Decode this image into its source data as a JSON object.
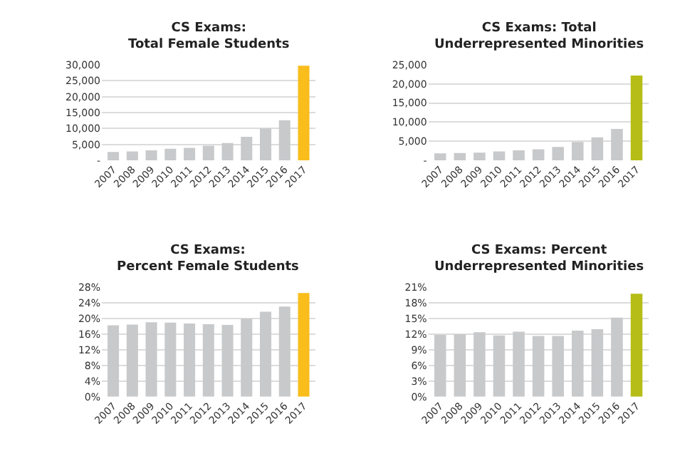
{
  "chart_data": [
    {
      "type": "bar",
      "title": "CS Exams:\nTotal Female Students",
      "categories": [
        "2007",
        "2008",
        "2009",
        "2010",
        "2011",
        "2012",
        "2013",
        "2014",
        "2015",
        "2016",
        "2017"
      ],
      "values": [
        2600,
        2800,
        3100,
        3600,
        3900,
        4600,
        5400,
        7400,
        10000,
        12600,
        29700
      ],
      "colors": [
        "#c8c9cb",
        "#c8c9cb",
        "#c8c9cb",
        "#c8c9cb",
        "#c8c9cb",
        "#c8c9cb",
        "#c8c9cb",
        "#c8c9cb",
        "#c8c9cb",
        "#c8c9cb",
        "#f9bd1c"
      ],
      "ylim": [
        0,
        30000
      ],
      "yticks": [
        {
          "value": 0,
          "label": "-"
        },
        {
          "value": 5000,
          "label": "5,000"
        },
        {
          "value": 10000,
          "label": "10,000"
        },
        {
          "value": 15000,
          "label": "15,000"
        },
        {
          "value": 20000,
          "label": "20,000"
        },
        {
          "value": 25000,
          "label": "25,000"
        },
        {
          "value": 30000,
          "label": "30,000"
        }
      ],
      "grid": "y"
    },
    {
      "type": "bar",
      "title": "CS Exams: Total\nUnderrepresented Minorities",
      "categories": [
        "2007",
        "2008",
        "2009",
        "2010",
        "2011",
        "2012",
        "2013",
        "2014",
        "2015",
        "2016",
        "2017"
      ],
      "values": [
        1800,
        1900,
        2000,
        2300,
        2600,
        2900,
        3500,
        4800,
        6000,
        8200,
        22200
      ],
      "colors": [
        "#c8c9cb",
        "#c8c9cb",
        "#c8c9cb",
        "#c8c9cb",
        "#c8c9cb",
        "#c8c9cb",
        "#c8c9cb",
        "#c8c9cb",
        "#c8c9cb",
        "#c8c9cb",
        "#b5bd16"
      ],
      "ylim": [
        0,
        25000
      ],
      "yticks": [
        {
          "value": 0,
          "label": "-"
        },
        {
          "value": 5000,
          "label": "5,000"
        },
        {
          "value": 10000,
          "label": "10,000"
        },
        {
          "value": 15000,
          "label": "15,000"
        },
        {
          "value": 20000,
          "label": "20,000"
        },
        {
          "value": 25000,
          "label": "25,000"
        }
      ],
      "grid": "y"
    },
    {
      "type": "bar",
      "title": "CS Exams:\nPercent Female Students",
      "categories": [
        "2007",
        "2008",
        "2009",
        "2010",
        "2011",
        "2012",
        "2013",
        "2014",
        "2015",
        "2016",
        "2017"
      ],
      "values": [
        18.3,
        18.5,
        19.1,
        19.0,
        18.8,
        18.6,
        18.4,
        20.0,
        21.8,
        23.1,
        26.6
      ],
      "colors": [
        "#c8c9cb",
        "#c8c9cb",
        "#c8c9cb",
        "#c8c9cb",
        "#c8c9cb",
        "#c8c9cb",
        "#c8c9cb",
        "#c8c9cb",
        "#c8c9cb",
        "#c8c9cb",
        "#f9bd1c"
      ],
      "ylim": [
        0,
        28
      ],
      "yticks": [
        {
          "value": 0,
          "label": "0%"
        },
        {
          "value": 4,
          "label": "4%"
        },
        {
          "value": 8,
          "label": "8%"
        },
        {
          "value": 12,
          "label": "12%"
        },
        {
          "value": 16,
          "label": "16%"
        },
        {
          "value": 20,
          "label": "20%"
        },
        {
          "value": 24,
          "label": "24%"
        },
        {
          "value": 28,
          "label": "28%"
        }
      ],
      "grid": "y"
    },
    {
      "type": "bar",
      "title": "CS Exams: Percent\nUnderrepresented Minorities",
      "categories": [
        "2007",
        "2008",
        "2009",
        "2010",
        "2011",
        "2012",
        "2013",
        "2014",
        "2015",
        "2016",
        "2017"
      ],
      "values": [
        11.9,
        12.0,
        12.4,
        11.8,
        12.5,
        11.7,
        11.7,
        12.7,
        13.0,
        15.2,
        19.8
      ],
      "colors": [
        "#c8c9cb",
        "#c8c9cb",
        "#c8c9cb",
        "#c8c9cb",
        "#c8c9cb",
        "#c8c9cb",
        "#c8c9cb",
        "#c8c9cb",
        "#c8c9cb",
        "#c8c9cb",
        "#b5bd16"
      ],
      "ylim": [
        0,
        21
      ],
      "yticks": [
        {
          "value": 0,
          "label": "0%"
        },
        {
          "value": 3,
          "label": "3%"
        },
        {
          "value": 6,
          "label": "6%"
        },
        {
          "value": 9,
          "label": "9%"
        },
        {
          "value": 12,
          "label": "12%"
        },
        {
          "value": 15,
          "label": "15%"
        },
        {
          "value": 18,
          "label": "18%"
        },
        {
          "value": 21,
          "label": "21%"
        }
      ],
      "grid": "y"
    }
  ]
}
